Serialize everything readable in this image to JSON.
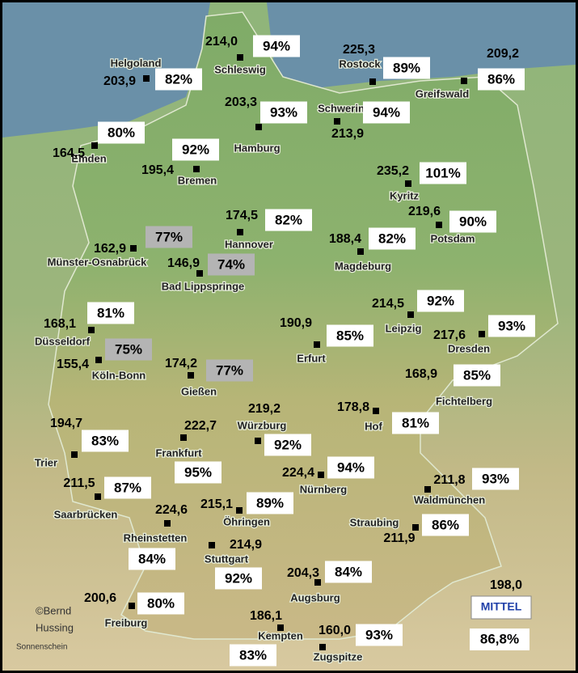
{
  "stations": [
    {
      "name": "Schleswig",
      "hours": "214,0",
      "percent": "94%"
    },
    {
      "name": "Helgoland",
      "hours": "203,9",
      "percent": "82%"
    },
    {
      "name": "Rostock",
      "hours": "225,3",
      "percent": "89%"
    },
    {
      "name": "Greifswald",
      "hours": "209,2",
      "percent": "86%"
    },
    {
      "name": "Hamburg",
      "hours": "203,3",
      "percent": "93%"
    },
    {
      "name": "Schwerin",
      "hours": "213,9",
      "percent": "94%"
    },
    {
      "name": "Emden",
      "hours": "164,5",
      "percent": "80%"
    },
    {
      "name": "Bremen",
      "hours": "195,4",
      "percent": "92%"
    },
    {
      "name": "Kyritz",
      "hours": "235,2",
      "percent": "101%"
    },
    {
      "name": "Potsdam",
      "hours": "219,6",
      "percent": "90%"
    },
    {
      "name": "Hannover",
      "hours": "174,5",
      "percent": "82%"
    },
    {
      "name": "Magdeburg",
      "hours": "188,4",
      "percent": "82%"
    },
    {
      "name": "Münster-Osnabrück",
      "hours": "162,9",
      "percent": "77%"
    },
    {
      "name": "Bad Lippspringe",
      "hours": "146,9",
      "percent": "74%"
    },
    {
      "name": "Düsseldorf",
      "hours": "168,1",
      "percent": "81%"
    },
    {
      "name": "Köln-Bonn",
      "hours": "155,4",
      "percent": "75%"
    },
    {
      "name": "Gießen",
      "hours": "174,2",
      "percent": "77%"
    },
    {
      "name": "Erfurt",
      "hours": "190,9",
      "percent": "85%"
    },
    {
      "name": "Leipzig",
      "hours": "214,5",
      "percent": "92%"
    },
    {
      "name": "Dresden",
      "hours": "217,6",
      "percent": "93%"
    },
    {
      "name": "Fichtelberg",
      "hours": "168,9",
      "percent": "85%"
    },
    {
      "name": "Hof",
      "hours": "178,8",
      "percent": "81%"
    },
    {
      "name": "Trier",
      "hours": "194,7",
      "percent": "83%"
    },
    {
      "name": "Frankfurt",
      "hours": "222,7",
      "percent": "95%"
    },
    {
      "name": "Würzburg",
      "hours": "219,2",
      "percent": "92%"
    },
    {
      "name": "Nürnberg",
      "hours": "224,4",
      "percent": "94%"
    },
    {
      "name": "Saarbrücken",
      "hours": "211,5",
      "percent": "87%"
    },
    {
      "name": "Öhringen",
      "hours": "215,1",
      "percent": "89%"
    },
    {
      "name": "Rheinstetten",
      "hours": "224,6",
      "percent": "84%"
    },
    {
      "name": "Stuttgart",
      "hours": "214,9",
      "percent": "92%"
    },
    {
      "name": "Waldmünchen",
      "hours": "211,8",
      "percent": "93%"
    },
    {
      "name": "Straubing",
      "hours": "211,9",
      "percent": "86%"
    },
    {
      "name": "Augsburg",
      "hours": "204,3",
      "percent": "84%"
    },
    {
      "name": "Freiburg",
      "hours": "200,6",
      "percent": "80%"
    },
    {
      "name": "Kempten",
      "hours": "186,1",
      "percent": "83%"
    },
    {
      "name": "Zugspitze",
      "hours": "160,0",
      "percent": "93%"
    }
  ],
  "average": {
    "label": "MITTEL",
    "hours": "198,0",
    "percent": "86,8%"
  },
  "credit": {
    "line1": "©Bernd",
    "line2": "Hussing",
    "caption": "Sonnenschein"
  }
}
